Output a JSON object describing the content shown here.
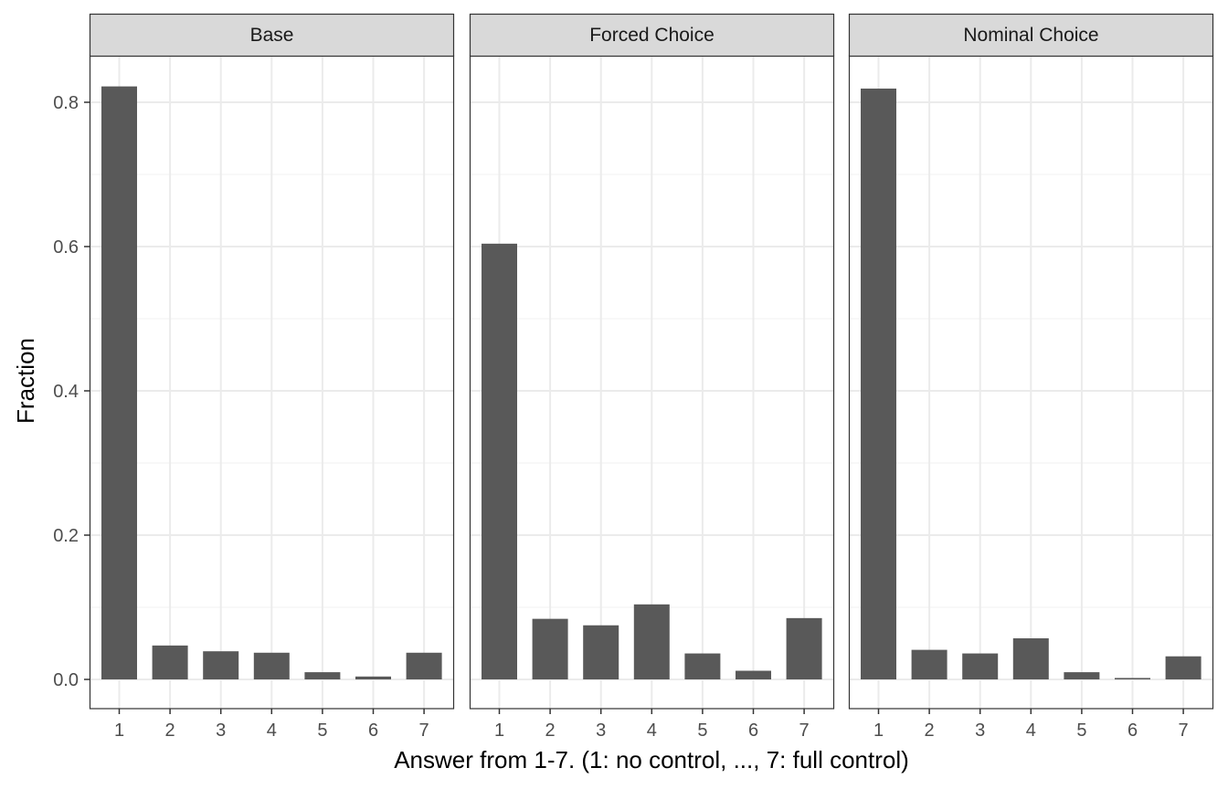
{
  "chart_data": {
    "type": "bar",
    "facets": [
      "Base",
      "Forced Choice",
      "Nominal Choice"
    ],
    "categories": [
      "1",
      "2",
      "3",
      "4",
      "5",
      "6",
      "7"
    ],
    "series": [
      {
        "facet": "Base",
        "values": [
          0.822,
          0.047,
          0.039,
          0.037,
          0.01,
          0.004,
          0.037
        ]
      },
      {
        "facet": "Forced Choice",
        "values": [
          0.604,
          0.084,
          0.075,
          0.104,
          0.036,
          0.012,
          0.085
        ]
      },
      {
        "facet": "Nominal Choice",
        "values": [
          0.819,
          0.041,
          0.036,
          0.057,
          0.01,
          0.002,
          0.032
        ]
      }
    ],
    "xlabel": "Answer from 1-7. (1: no control, ..., 7: full control)",
    "ylabel": "Fraction",
    "ylim": [
      -0.04,
      0.9
    ],
    "yticks": [
      0.0,
      0.2,
      0.4,
      0.6,
      0.8
    ],
    "ytick_labels": [
      "0.0",
      "0.2",
      "0.4",
      "0.6",
      "0.8"
    ],
    "grid": true,
    "bar_color": "#595959",
    "strip_color": "#d9d9d9"
  }
}
